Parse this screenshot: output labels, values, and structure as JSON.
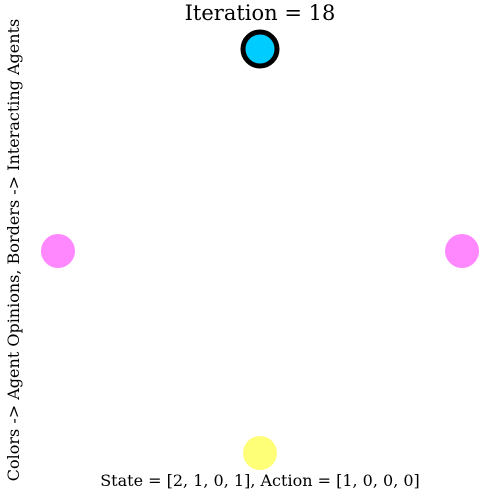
{
  "title": "Iteration = 18",
  "xlabel": "State = [2, 1, 0, 1], Action = [1, 0, 0, 0]",
  "ylabel": "Colors -> Agent Opinions, Borders -> Interacting Agents",
  "agents": [
    {
      "id": 0,
      "position": "top",
      "color": "#00ccff",
      "interacting": true
    },
    {
      "id": 1,
      "position": "right",
      "color": "#ff88ff",
      "interacting": false
    },
    {
      "id": 2,
      "position": "bottom",
      "color": "#ffff77",
      "interacting": false
    },
    {
      "id": 3,
      "position": "left",
      "color": "#ff88ff",
      "interacting": false
    }
  ]
}
